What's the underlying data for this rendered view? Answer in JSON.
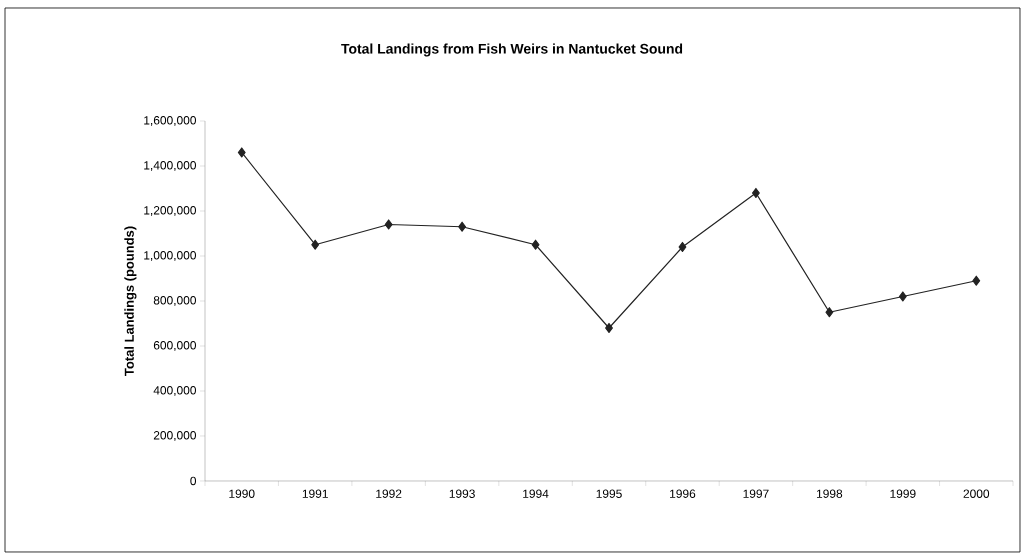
{
  "chart_data": {
    "type": "line",
    "title": "Total Landings from Fish Weirs in Nantucket Sound",
    "ylabel": "Total Landings (pounds)",
    "categories": [
      "1990",
      "1991",
      "1992",
      "1993",
      "1994",
      "1995",
      "1996",
      "1997",
      "1998",
      "1999",
      "2000"
    ],
    "values": [
      1460000,
      1050000,
      1140000,
      1130000,
      1050000,
      680000,
      1040000,
      1280000,
      750000,
      820000,
      890000
    ],
    "color": "#222222",
    "marker": "diamond",
    "line_style": "solid",
    "ylim": [
      0,
      1600000
    ],
    "yticks": [
      {
        "value": 0,
        "label": "0"
      },
      {
        "value": 200000,
        "label": "200,000"
      },
      {
        "value": 400000,
        "label": "400,000"
      },
      {
        "value": 600000,
        "label": "600,000"
      },
      {
        "value": 800000,
        "label": "800,000"
      },
      {
        "value": 1000000,
        "label": "1,000,000"
      },
      {
        "value": 1200000,
        "label": "1,200,000"
      },
      {
        "value": 1400000,
        "label": "1,400,000"
      },
      {
        "value": 1600000,
        "label": "1,600,000"
      }
    ]
  }
}
